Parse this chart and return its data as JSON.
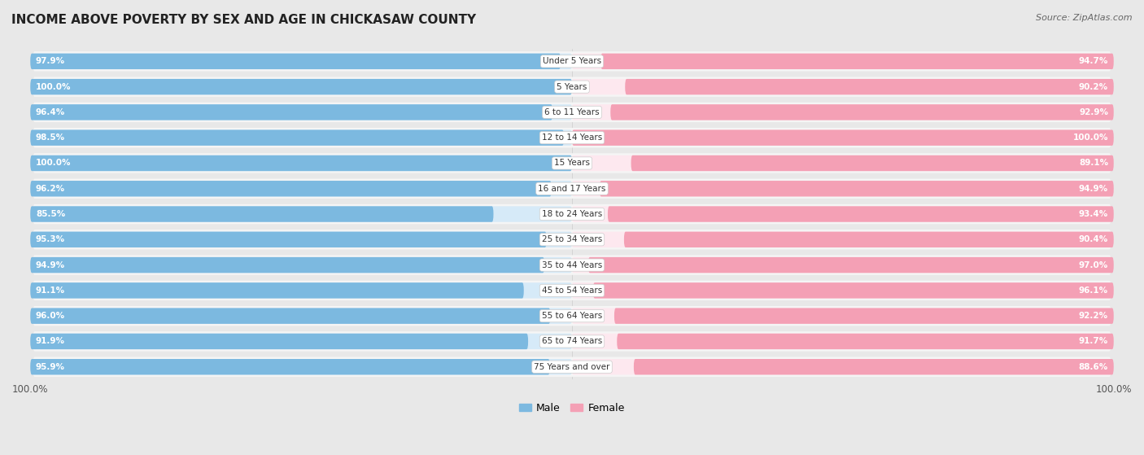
{
  "title": "INCOME ABOVE POVERTY BY SEX AND AGE IN CHICKASAW COUNTY",
  "source": "Source: ZipAtlas.com",
  "categories": [
    "Under 5 Years",
    "5 Years",
    "6 to 11 Years",
    "12 to 14 Years",
    "15 Years",
    "16 and 17 Years",
    "18 to 24 Years",
    "25 to 34 Years",
    "35 to 44 Years",
    "45 to 54 Years",
    "55 to 64 Years",
    "65 to 74 Years",
    "75 Years and over"
  ],
  "male": [
    97.9,
    100.0,
    96.4,
    98.5,
    100.0,
    96.2,
    85.5,
    95.3,
    94.9,
    91.1,
    96.0,
    91.9,
    95.9
  ],
  "female": [
    94.7,
    90.2,
    92.9,
    100.0,
    89.1,
    94.9,
    93.4,
    90.4,
    97.0,
    96.1,
    92.2,
    91.7,
    88.6
  ],
  "male_color": "#7cb9e0",
  "female_color": "#f4a0b5",
  "male_light": "#d6eaf8",
  "female_light": "#fde8ef",
  "bg_color": "#e8e8e8",
  "row_bg_color": "#f5f5f5",
  "legend_male": "Male",
  "legend_female": "Female"
}
